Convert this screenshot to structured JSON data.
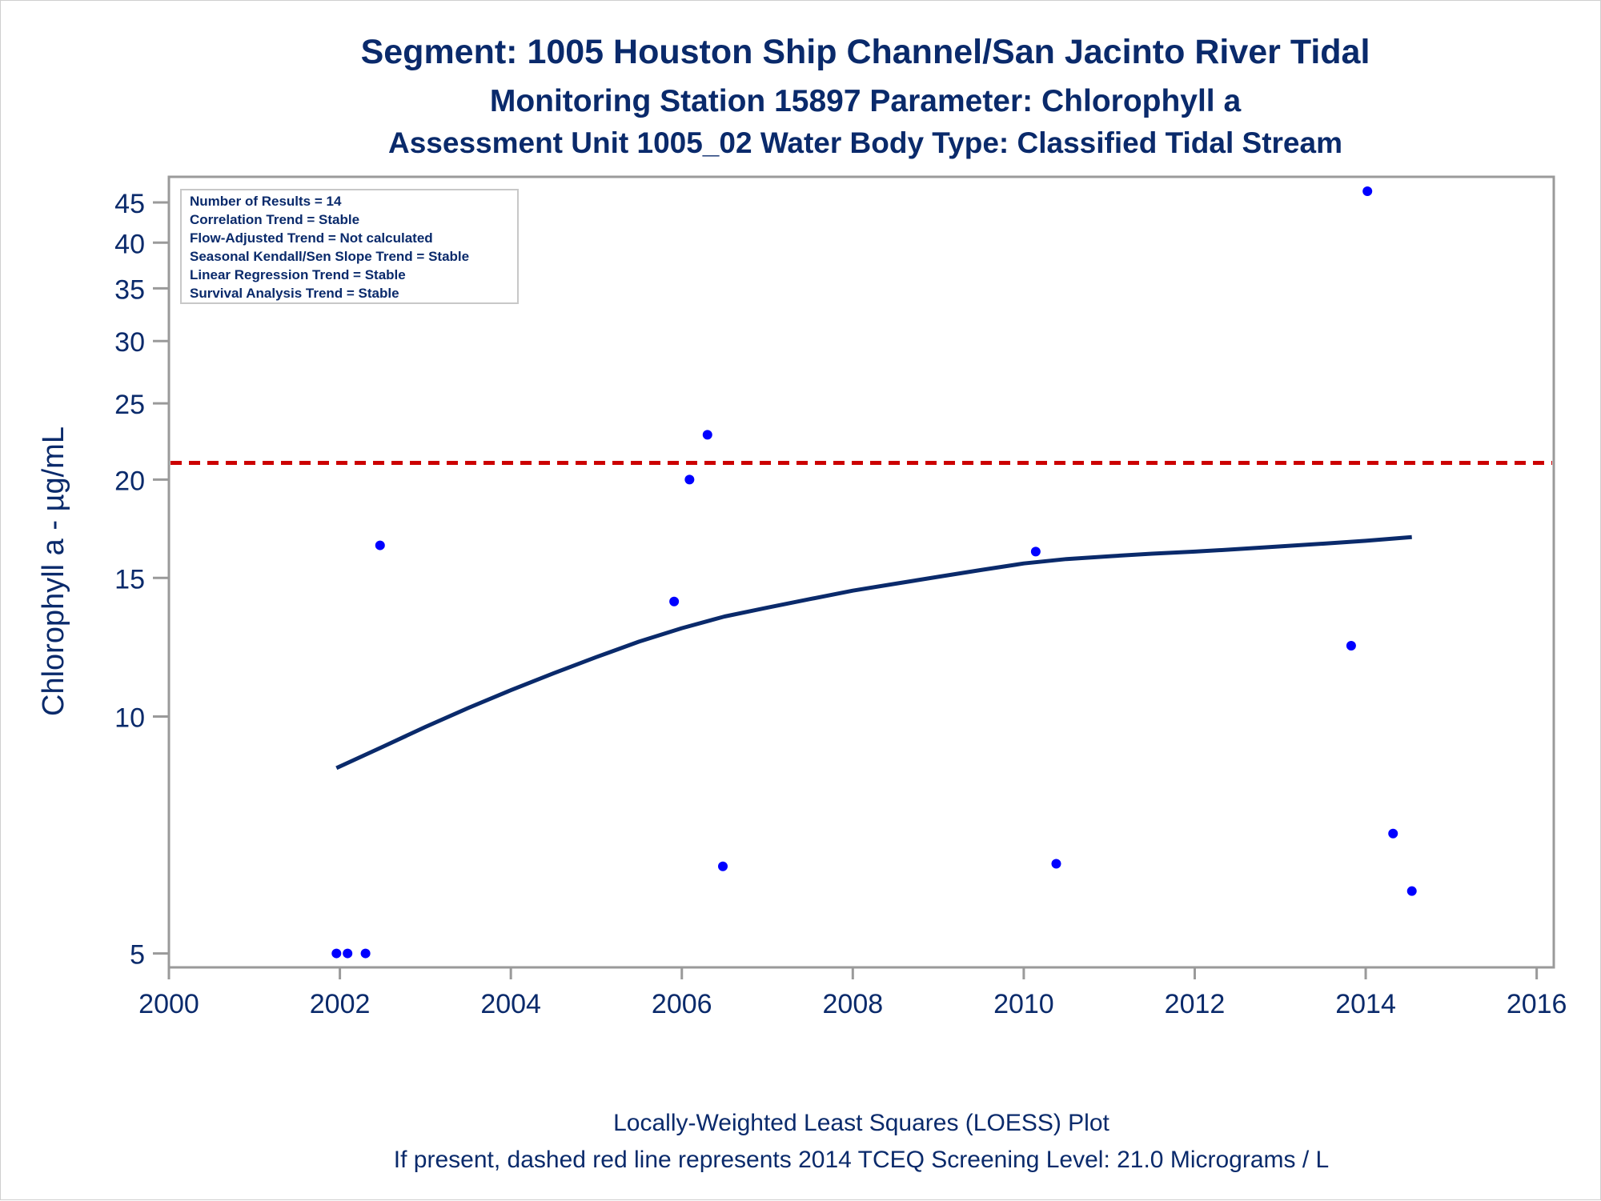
{
  "chart_data": {
    "type": "scatter",
    "title": "Segment: 1005  Houston Ship Channel/San Jacinto River Tidal",
    "subtitle1": "Monitoring Station 15897 Parameter: Chlorophyll a",
    "subtitle2": "Assessment Unit 1005_02   Water Body Type: Classified Tidal Stream",
    "ylabel": "Chlorophyll a -  µg/mL",
    "xlabel": "",
    "footnote1": "Locally-Weighted Least Squares (LOESS) Plot",
    "footnote2": "If present, dashed red line represents 2014 TCEQ Screening Level: 21.0 Micrograms / L",
    "x_ticks": [
      "2000",
      "2002",
      "2004",
      "2006",
      "2008",
      "2010",
      "2012",
      "2014",
      "2016"
    ],
    "x_tick_values": [
      2000,
      2002,
      2004,
      2006,
      2008,
      2010,
      2012,
      2014,
      2016
    ],
    "y_ticks": [
      "5",
      "10",
      "15",
      "20",
      "25",
      "30",
      "35",
      "40",
      "45"
    ],
    "y_tick_values": [
      5,
      10,
      15,
      20,
      25,
      30,
      35,
      40,
      45
    ],
    "y_scale": "log",
    "xlim": [
      2000,
      2016.2
    ],
    "ylim": [
      4.8,
      48.5
    ],
    "grid": false,
    "stats_box": {
      "placement": "top-left",
      "lines": [
        "Number of Results = 14",
        "Correlation Trend = Stable",
        "Flow-Adjusted Trend = Not calculated",
        "Seasonal Kendall/Sen Slope Trend = Stable",
        "Linear Regression Trend = Stable",
        "Survival Analysis Trend = Stable"
      ]
    },
    "screening_level": {
      "y": 21.0,
      "color": "#cc0000",
      "style": "dashed"
    },
    "series": [
      {
        "kind": "points",
        "color": "#0000ff",
        "x": [
          2001.96,
          2002.09,
          2002.3,
          2002.47,
          2005.91,
          2006.09,
          2006.3,
          2006.48,
          2010.14,
          2010.38,
          2013.83,
          2014.02,
          2014.32,
          2014.54
        ],
        "y": [
          5.0,
          5.0,
          5.0,
          16.5,
          14.0,
          20.0,
          22.8,
          6.45,
          16.2,
          6.5,
          12.3,
          46.5,
          7.1,
          6.0
        ]
      },
      {
        "kind": "line",
        "color": "#0a2a6b",
        "x": [
          2001.96,
          2002.5,
          2003.0,
          2003.5,
          2004.0,
          2004.5,
          2005.0,
          2005.5,
          2006.0,
          2006.5,
          2007.0,
          2007.5,
          2008.0,
          2008.5,
          2009.0,
          2009.5,
          2010.0,
          2010.5,
          2011.0,
          2011.5,
          2012.0,
          2012.5,
          2013.0,
          2013.5,
          2014.0,
          2014.54
        ],
        "y": [
          8.6,
          9.15,
          9.7,
          10.25,
          10.8,
          11.35,
          11.9,
          12.45,
          12.95,
          13.4,
          13.75,
          14.1,
          14.45,
          14.75,
          15.05,
          15.35,
          15.65,
          15.85,
          15.98,
          16.1,
          16.2,
          16.32,
          16.45,
          16.58,
          16.72,
          16.9
        ]
      }
    ]
  },
  "colors": {
    "text": "#0a2a6b",
    "frame": "#9a9a9a",
    "points": "#0000ff",
    "loess": "#0a2a6b",
    "screening": "#cc0000"
  }
}
